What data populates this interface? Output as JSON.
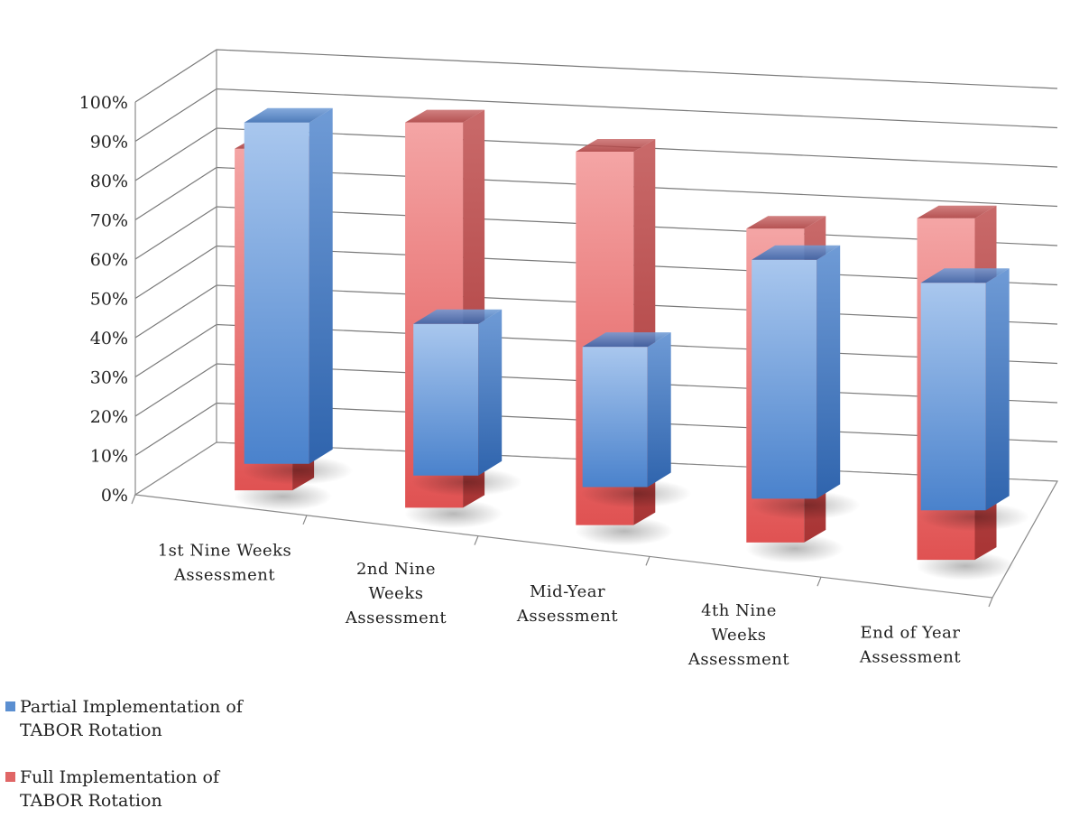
{
  "chart_data": {
    "type": "bar",
    "title": "",
    "categories": [
      "1st Nine Weeks Assessment",
      "2nd Nine Weeks Assessment",
      "Mid-Year Assessment",
      "4th Nine Weeks Assessment",
      "End of Year Assessment"
    ],
    "category_lines": [
      [
        "1st Nine Weeks",
        "Assessment"
      ],
      [
        "2nd Nine",
        "Weeks",
        "Assessment"
      ],
      [
        "Mid-Year",
        "Assessment"
      ],
      [
        "4th Nine",
        "Weeks",
        "Assessment"
      ],
      [
        "End of Year",
        "Assessment"
      ]
    ],
    "series": [
      {
        "name": "Partial Implementation of TABOR Rotation",
        "color": "#5b8fd1",
        "values": [
          90,
          40,
          37,
          63,
          60
        ]
      },
      {
        "name": "Full Implementation of TABOR Rotation",
        "color": "#e06666",
        "values": [
          86,
          97,
          94,
          79,
          86
        ]
      }
    ],
    "y_ticks": [
      "0%",
      "10%",
      "20%",
      "30%",
      "40%",
      "50%",
      "60%",
      "70%",
      "80%",
      "90%",
      "100%"
    ],
    "ylim": [
      0,
      100
    ],
    "grid": true,
    "legend_position": "bottom-left",
    "view": "3d-column"
  }
}
